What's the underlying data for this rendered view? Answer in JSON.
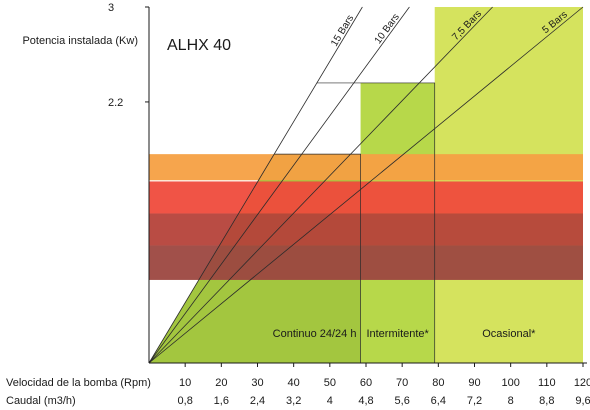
{
  "chart_data": {
    "type": "area",
    "title": "ALHX 40",
    "ylabel": "Potencia instalada (Kw)",
    "xlabel": "Velocidad de la bomba (Rpm)",
    "xlabel2": "Caudal (m3/h)",
    "xlim": [
      0,
      120
    ],
    "ylim": [
      0,
      3
    ],
    "yticks": [
      "2.2",
      "3"
    ],
    "ytick_values": [
      2.2,
      3
    ],
    "x_rpm": [
      "10",
      "20",
      "30",
      "40",
      "50",
      "60",
      "70",
      "80",
      "90",
      "100",
      "110",
      "120"
    ],
    "x_flow": [
      "0,8",
      "1,6",
      "2,4",
      "3,2",
      "4",
      "4,8",
      "5,6",
      "6,4",
      "7,2",
      "8",
      "8,8",
      "9,6"
    ],
    "x_values": [
      10,
      20,
      30,
      40,
      50,
      60,
      70,
      80,
      90,
      100,
      110,
      120
    ],
    "pressure_lines": [
      {
        "name": "15 Bars",
        "x_at_top": 59
      },
      {
        "name": "10 Bars",
        "x_at_top": 72
      },
      {
        "name": "7,5 Bars",
        "x_at_top": 95
      },
      {
        "name": "5 Bars",
        "x_at_top": 120
      }
    ],
    "zones": [
      {
        "name": "Continuo 24/24 h",
        "x_range": [
          0,
          58.5
        ],
        "y_max": 1.76,
        "color": "#a3c63f"
      },
      {
        "name": "Intermitente*",
        "x_range": [
          58.5,
          79
        ],
        "y_max": 2.36,
        "color": "#b7d84a"
      },
      {
        "name": "Ocasional*",
        "x_range": [
          79,
          120
        ],
        "y_max": 3,
        "color": "#d5e35e"
      }
    ],
    "bands": [
      {
        "y_range": [
          1.54,
          1.76
        ],
        "color": "#f6a043"
      },
      {
        "y_range": [
          1.26,
          1.53
        ],
        "color": "#ef4b3c"
      },
      {
        "y_range": [
          0.99,
          1.26
        ],
        "color": "#b5423a"
      },
      {
        "y_range": [
          0.7,
          0.99
        ],
        "color": "#9c4740"
      }
    ],
    "grid": false,
    "legend": "none"
  }
}
